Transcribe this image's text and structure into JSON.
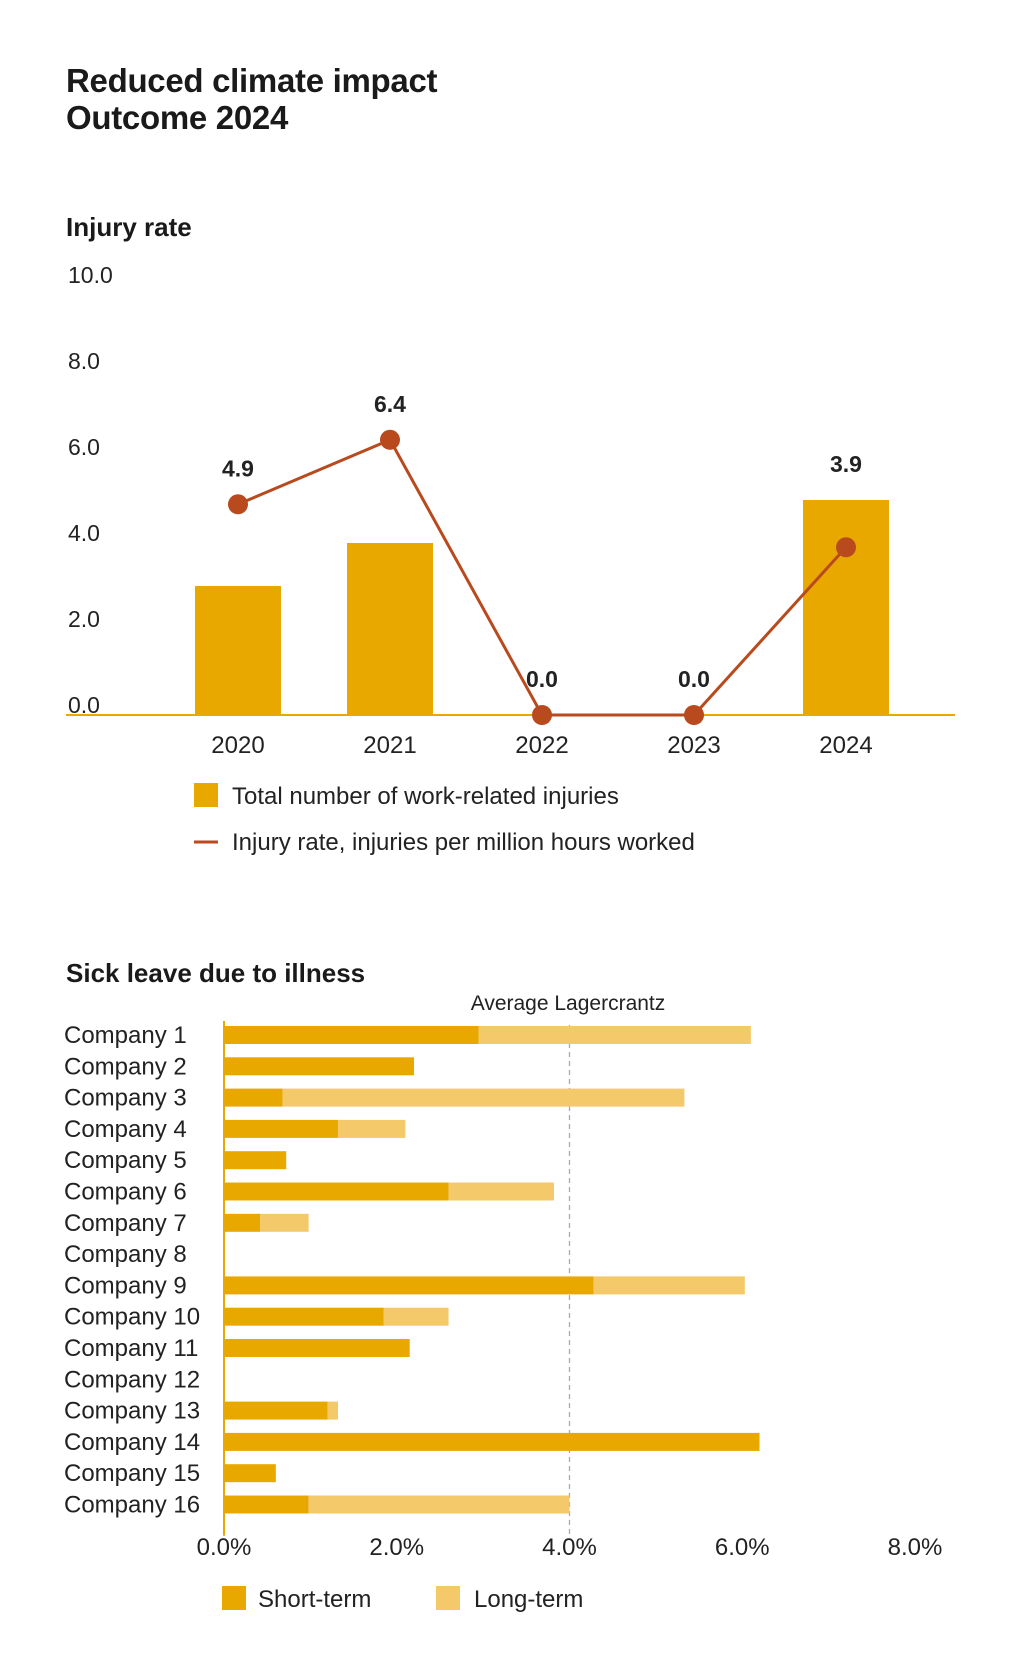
{
  "header": {
    "title_line1": "Reduced climate impact",
    "title_line2": "Outcome 2024"
  },
  "colors": {
    "bar": "#e8a800",
    "bar_light": "#f4c96a",
    "line": "#b84a1e",
    "axis": "#e8a800",
    "grid_ref": "#aaaaaa"
  },
  "chart_data": [
    {
      "type": "bar+line",
      "title": "Injury rate",
      "categories": [
        "2020",
        "2021",
        "2022",
        "2023",
        "2024"
      ],
      "yticks": [
        "10.0",
        "8.0",
        "6.0",
        "4.0",
        "2.0",
        "0.0"
      ],
      "ylim": [
        0,
        10
      ],
      "series": [
        {
          "name": "Total number of work-related injuries",
          "kind": "bar",
          "values": [
            3.0,
            4.0,
            0,
            0,
            5.0
          ]
        },
        {
          "name": "Injury rate, injuries per million hours worked",
          "kind": "line",
          "values": [
            4.9,
            6.4,
            0.0,
            0.0,
            3.9
          ]
        }
      ],
      "data_labels": [
        "4.9",
        "6.4",
        "0.0",
        "0.0",
        "3.9"
      ],
      "legend": [
        "Total number of work-related injuries",
        "Injury rate, injuries per million hours worked"
      ]
    },
    {
      "type": "stacked-horizontal-bar",
      "title": "Sick leave due to illness",
      "categories": [
        "Company 1",
        "Company 2",
        "Company 3",
        "Company 4",
        "Company 5",
        "Company 6",
        "Company 7",
        "Company 8",
        "Company 9",
        "Company 10",
        "Company 11",
        "Company 12",
        "Company 13",
        "Company 14",
        "Company 15",
        "Company 16"
      ],
      "series": [
        {
          "name": "Short-term",
          "values": [
            2.95,
            2.2,
            0.68,
            1.32,
            0.72,
            2.6,
            0.42,
            0,
            4.28,
            1.85,
            2.15,
            0,
            1.2,
            6.2,
            0.6,
            0.98
          ]
        },
        {
          "name": "Long-term",
          "values": [
            3.15,
            0,
            4.65,
            0.78,
            0,
            1.22,
            0.56,
            0,
            1.75,
            0.75,
            0,
            0,
            0.12,
            0,
            0,
            3.02
          ]
        }
      ],
      "xticks": [
        "0.0%",
        "2.0%",
        "4.0%",
        "6.0%",
        "8.0%"
      ],
      "xlim": [
        0,
        8
      ],
      "reference_line": {
        "label": "Average Lagercrantz",
        "value": 4.0
      },
      "legend": [
        "Short-term",
        "Long-term"
      ]
    }
  ]
}
